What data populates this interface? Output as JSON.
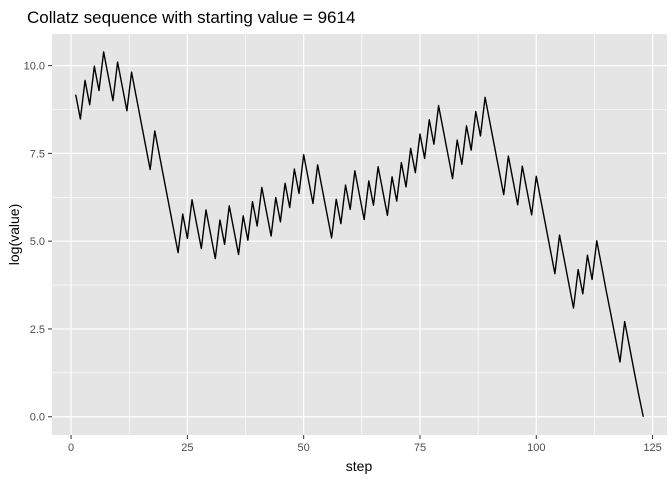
{
  "chart_data": {
    "type": "line",
    "title": "Collatz sequence with starting value = 9614",
    "xlabel": "step",
    "ylabel": "log(value)",
    "xlim": [
      -4.1,
      128.1
    ],
    "ylim": [
      -0.52,
      10.9
    ],
    "x_ticks": [
      0,
      25,
      50,
      75,
      100,
      125
    ],
    "x_tick_labels": [
      "0",
      "25",
      "50",
      "75",
      "100",
      "125"
    ],
    "y_ticks": [
      0.0,
      2.5,
      5.0,
      7.5,
      10.0
    ],
    "y_tick_labels": [
      "0.0",
      "2.5",
      "5.0",
      "7.5",
      "10.0"
    ],
    "start_value": 9614,
    "grid": true,
    "panel_background": "#e5e5e5",
    "grid_color": "#ffffff",
    "line_color": "#000000",
    "series": [
      {
        "x": [
          1,
          2,
          3,
          4,
          5,
          6,
          7,
          8,
          9,
          10,
          11,
          12,
          13,
          14,
          15,
          16,
          17,
          18,
          19,
          20,
          21,
          22,
          23,
          24,
          25,
          26,
          27,
          28,
          29,
          30,
          31,
          32,
          33,
          34,
          35,
          36,
          37,
          38,
          39,
          40,
          41,
          42,
          43,
          44,
          45,
          46,
          47,
          48,
          49,
          50,
          51,
          52,
          53,
          54,
          55,
          56,
          57,
          58,
          59,
          60,
          61,
          62,
          63,
          64,
          65,
          66,
          67,
          68,
          69,
          70,
          71,
          72,
          73,
          74,
          75,
          76,
          77,
          78,
          79,
          80,
          81,
          82,
          83,
          84,
          85,
          86,
          87,
          88,
          89,
          90,
          91,
          92,
          93,
          94,
          95,
          96,
          97,
          98,
          99,
          100,
          101,
          102,
          103,
          104,
          105,
          106,
          107,
          108,
          109,
          110,
          111,
          112,
          113,
          114,
          115,
          116,
          117,
          118,
          119,
          120,
          121,
          122,
          123
        ],
        "values": [
          9.171,
          8.478,
          9.577,
          8.884,
          9.982,
          9.289,
          10.388,
          9.695,
          9.001,
          10.1,
          9.407,
          8.714,
          9.812,
          9.119,
          8.426,
          7.733,
          7.04,
          8.138,
          7.445,
          6.752,
          6.059,
          5.366,
          4.673,
          5.771,
          5.078,
          6.177,
          5.483,
          4.79,
          5.889,
          5.196,
          4.503,
          5.602,
          4.909,
          6.007,
          5.314,
          4.621,
          5.72,
          5.027,
          6.125,
          5.432,
          6.531,
          5.838,
          5.145,
          6.243,
          5.55,
          6.649,
          5.956,
          7.054,
          6.361,
          7.46,
          6.767,
          6.073,
          7.172,
          6.479,
          5.786,
          5.093,
          6.191,
          5.498,
          6.597,
          5.904,
          7.002,
          6.309,
          5.616,
          6.715,
          6.022,
          7.12,
          6.427,
          5.734,
          6.833,
          6.139,
          7.238,
          6.545,
          7.644,
          6.951,
          8.049,
          7.356,
          8.455,
          7.762,
          8.86,
          8.167,
          7.474,
          6.781,
          7.879,
          7.186,
          8.285,
          7.592,
          8.69,
          7.997,
          9.096,
          8.403,
          7.709,
          7.016,
          6.323,
          7.422,
          6.729,
          6.036,
          7.134,
          6.441,
          5.748,
          6.846,
          6.153,
          5.46,
          4.767,
          4.074,
          5.173,
          4.48,
          3.787,
          3.094,
          4.19,
          3.5,
          4.6,
          3.91,
          5.01,
          4.32,
          3.61,
          2.94,
          2.25,
          1.56,
          2.71,
          2.02,
          1.32,
          0.64,
          0.0
        ]
      }
    ]
  }
}
